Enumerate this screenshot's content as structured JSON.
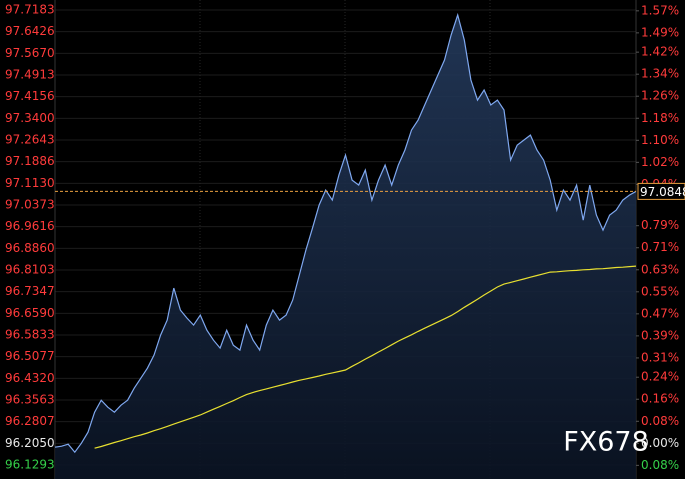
{
  "chart_data": {
    "type": "line",
    "watermark": "FX678",
    "last_price": 97.0848,
    "last_price_label": "97.0848",
    "base": 96.205,
    "ylim": [
      96.1293,
      97.7183
    ],
    "yticks": [
      97.7183,
      97.6426,
      {
        "value": 97.567,
        "label": "97.5670"
      },
      97.4913,
      97.4156,
      {
        "value": 97.34,
        "label": "97.3400"
      },
      97.2643,
      97.1886,
      {
        "value": 97.113,
        "label": "97.1130"
      },
      97.0373,
      96.9616,
      {
        "value": 96.886,
        "label": "96.8860"
      },
      96.8103,
      96.7347,
      {
        "value": 96.659,
        "label": "96.6590"
      },
      96.5833,
      96.5077,
      {
        "value": 96.432,
        "label": "96.4320"
      },
      96.3563,
      96.2807,
      {
        "value": 96.205,
        "label": "96.2050"
      },
      96.1293
    ],
    "y2lim": [
      -0.0787,
      1.573
    ],
    "y2ticks": [
      {
        "value": 1.57,
        "label": "1.57%"
      },
      {
        "value": 1.49,
        "label": "1.49%"
      },
      {
        "value": 1.42,
        "label": "1.42%"
      },
      {
        "value": 1.34,
        "label": "1.34%"
      },
      {
        "value": 1.26,
        "label": "1.26%"
      },
      {
        "value": 1.18,
        "label": "1.18%"
      },
      {
        "value": 1.1,
        "label": "1.10%"
      },
      {
        "value": 1.02,
        "label": "1.02%"
      },
      {
        "value": 0.94,
        "label": "0.94%"
      },
      {
        "value": 0.79,
        "label": "0.79%"
      },
      {
        "value": 0.71,
        "label": "0.71%"
      },
      {
        "value": 0.63,
        "label": "0.63%"
      },
      {
        "value": 0.55,
        "label": "0.55%"
      },
      {
        "value": 0.47,
        "label": "0.47%"
      },
      {
        "value": 0.39,
        "label": "0.39%"
      },
      {
        "value": 0.31,
        "label": "0.31%"
      },
      {
        "value": 0.24,
        "label": "0.24%"
      },
      {
        "value": 0.16,
        "label": "0.16%"
      },
      {
        "value": 0.08,
        "label": "0.08%"
      },
      {
        "value": 0,
        "label": "0.00%"
      },
      {
        "value": -0.08,
        "label": "0.08%"
      }
    ],
    "series": [
      {
        "color": "#7fa8f0",
        "values": [
          96.1915,
          96.195,
          96.2019,
          96.174,
          96.2054,
          96.2439,
          96.3138,
          96.3557,
          96.3312,
          96.3138,
          96.3382,
          96.3557,
          96.3976,
          96.4325,
          96.4675,
          96.5129,
          96.5828,
          96.6352,
          96.747,
          96.6701,
          96.6422,
          96.6177,
          96.6527,
          96.6002,
          96.5653,
          96.5374,
          96.6002,
          96.5478,
          96.5304,
          96.6177,
          96.5653,
          96.5304,
          96.6177,
          96.6701,
          96.6352,
          96.6527,
          96.7051,
          96.7924,
          96.8797,
          96.9566,
          97.037,
          97.0894,
          97.0544,
          97.1418,
          97.2117,
          97.1243,
          97.1068,
          97.1593,
          97.0544,
          97.1243,
          97.1767,
          97.1068,
          97.1767,
          97.2291,
          97.299,
          97.3339,
          97.3864,
          97.4388,
          97.4912,
          97.5436,
          97.6309,
          97.7008,
          97.6134,
          97.4737,
          97.4038,
          97.4388,
          97.3864,
          97.4038,
          97.3689,
          97.1942,
          97.2466,
          97.2641,
          97.2815,
          97.2291,
          97.1942,
          97.1243,
          97.0195,
          97.0894,
          97.0544,
          97.1068,
          96.9846,
          97.1068,
          97.002,
          96.9496,
          97.002,
          97.0195,
          97.0544,
          97.0719,
          97.0848
        ]
      },
      {
        "color": "#e8e030",
        "values": [
          null,
          null,
          null,
          null,
          null,
          null,
          96.188,
          96.194,
          96.201,
          96.208,
          96.214,
          96.221,
          96.228,
          96.234,
          96.241,
          96.249,
          96.256,
          96.264,
          96.272,
          96.28,
          96.288,
          96.296,
          96.304,
          96.314,
          96.324,
          96.334,
          96.344,
          96.354,
          96.365,
          96.375,
          96.383,
          96.389,
          96.395,
          96.401,
          96.407,
          96.413,
          96.419,
          96.425,
          96.43,
          96.435,
          96.44,
          96.446,
          96.451,
          96.456,
          96.461,
          96.474,
          96.486,
          96.499,
          96.511,
          96.524,
          96.536,
          96.549,
          96.562,
          96.573,
          96.584,
          96.596,
          96.607,
          96.618,
          96.629,
          96.64,
          96.651,
          96.665,
          96.68,
          96.694,
          96.708,
          96.723,
          96.737,
          96.751,
          96.761,
          96.767,
          96.773,
          96.779,
          96.785,
          96.791,
          96.797,
          96.803,
          96.804,
          96.806,
          96.808,
          96.809,
          96.811,
          96.812,
          96.814,
          96.815,
          96.817,
          96.819,
          96.82,
          96.822,
          96.824
        ]
      }
    ]
  }
}
